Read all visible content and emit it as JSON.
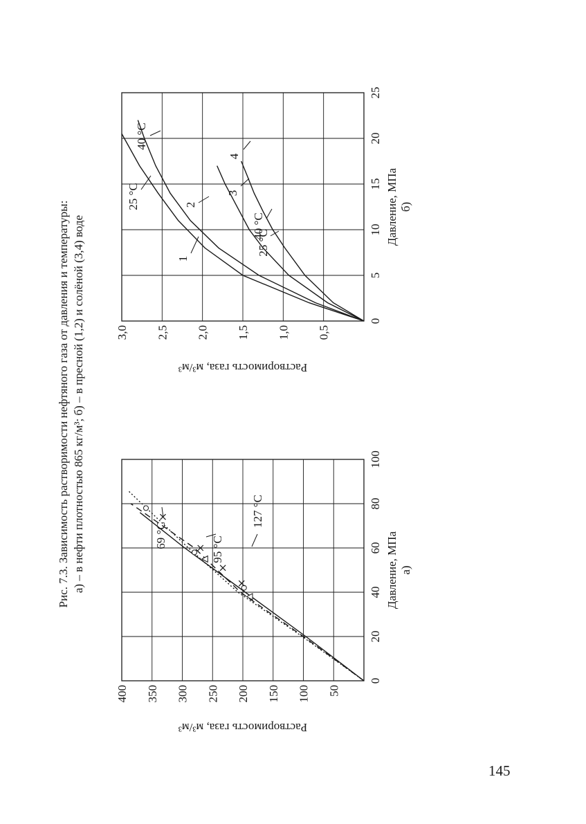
{
  "page_number": "145",
  "caption": {
    "line1": "Рис. 7.3. Зависимость растворимости нефтяного газа от давления и температуры:",
    "line2": "а) – в нефти плотностью 865 кг/м³; б) – в пресной (1,2) и солёной (3,4) воде"
  },
  "chart_data": [
    {
      "type": "line",
      "panel_label": "а)",
      "xlabel": "Давление, МПа",
      "ylabel": "Растворимость газа, м³/м³",
      "xlim": [
        0,
        100
      ],
      "ylim": [
        0,
        400
      ],
      "xticks": [
        "0",
        "20",
        "40",
        "60",
        "80",
        "100"
      ],
      "yticks": [
        "50",
        "100",
        "150",
        "200",
        "250",
        "300",
        "350",
        "400"
      ],
      "grid": true,
      "series": [
        {
          "name": "69 °C",
          "style": "solid",
          "color": "#1a1a1a",
          "x": [
            0,
            20,
            40,
            60,
            76
          ],
          "y": [
            0,
            96,
            196,
            296,
            370
          ]
        },
        {
          "name": "95 °C",
          "style": "dashed",
          "color": "#1a1a1a",
          "x": [
            0,
            20,
            40,
            60,
            80
          ],
          "y": [
            0,
            100,
            204,
            280,
            385
          ]
        },
        {
          "name": "127 °C",
          "style": "dotted",
          "color": "#1a1a1a",
          "x": [
            0,
            20,
            40,
            60,
            86
          ],
          "y": [
            0,
            102,
            208,
            290,
            390
          ]
        }
      ],
      "markers": [
        {
          "shape": "triangle",
          "x": [
            38,
            55
          ],
          "y": [
            188,
            262
          ]
        },
        {
          "shape": "circle",
          "x": [
            42,
            58,
            78
          ],
          "y": [
            198,
            280,
            360
          ]
        },
        {
          "shape": "cross",
          "x": [
            44,
            51,
            60,
            74
          ],
          "y": [
            202,
            233,
            270,
            332
          ]
        }
      ],
      "annotations": [
        "69 °C",
        "95 °C",
        "127 °C"
      ]
    },
    {
      "type": "line",
      "panel_label": "б)",
      "xlabel": "Давление, МПа",
      "ylabel": "Растворимость газа, м³/м³",
      "xlim": [
        0,
        25
      ],
      "ylim": [
        0,
        3.0
      ],
      "xticks": [
        "0",
        "5",
        "10",
        "15",
        "20",
        "25"
      ],
      "yticks": [
        "0,5",
        "1,0",
        "1,5",
        "2,0",
        "2,5",
        "3,0"
      ],
      "grid": true,
      "series": [
        {
          "name": "1",
          "style": "solid",
          "color": "#1a1a1a",
          "x": [
            0,
            2,
            5,
            8,
            11,
            14,
            17,
            20.5
          ],
          "y": [
            0,
            0.68,
            1.5,
            1.97,
            2.3,
            2.55,
            2.78,
            3.0
          ]
        },
        {
          "name": "2",
          "style": "solid",
          "color": "#1a1a1a",
          "x": [
            0,
            2,
            5,
            8,
            11,
            14,
            17,
            20,
            22
          ],
          "y": [
            0,
            0.6,
            1.3,
            1.8,
            2.15,
            2.4,
            2.58,
            2.72,
            2.8
          ]
        },
        {
          "name": "3",
          "style": "solid",
          "color": "#1a1a1a",
          "x": [
            0,
            2,
            5,
            8,
            10,
            13,
            15,
            17
          ],
          "y": [
            0,
            0.45,
            0.93,
            1.25,
            1.42,
            1.6,
            1.72,
            1.82
          ]
        },
        {
          "name": "4",
          "style": "solid",
          "color": "#1a1a1a",
          "x": [
            0,
            2,
            5,
            8,
            10,
            12,
            14,
            16,
            17.5
          ],
          "y": [
            0,
            0.38,
            0.73,
            0.98,
            1.13,
            1.25,
            1.36,
            1.45,
            1.52
          ]
        }
      ],
      "annotations": [
        "25 °C",
        "40 °C",
        "25 °C",
        "40 °C",
        "1",
        "2",
        "3",
        "4"
      ]
    }
  ]
}
